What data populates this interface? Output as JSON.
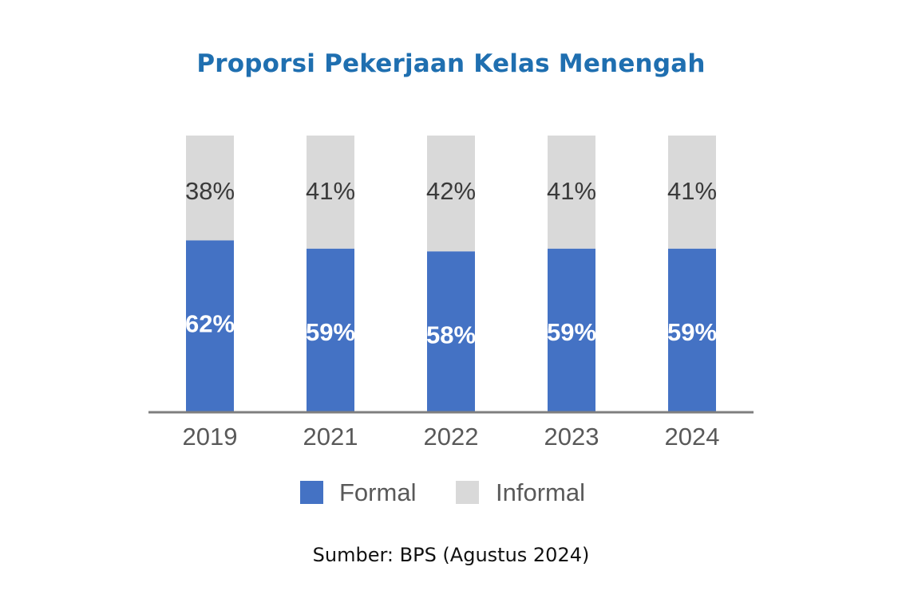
{
  "title": "Proporsi Pekerjaan Kelas Menengah",
  "source": "Sumber: BPS (Agustus 2024)",
  "colors": {
    "formal": "#4472c4",
    "informal": "#d9d9d9",
    "title": "#1f6fb0",
    "axis": "#7f7f7f",
    "formal_label": "#ffffff",
    "informal_label": "#3a3a3a",
    "tick_label": "#595959",
    "legend_text": "#595959"
  },
  "chart_data": {
    "type": "bar",
    "stacked": true,
    "percent": true,
    "title": "Proporsi Pekerjaan Kelas Menengah",
    "categories": [
      "2019",
      "2021",
      "2022",
      "2023",
      "2024"
    ],
    "series": [
      {
        "name": "Formal",
        "values": [
          62,
          59,
          58,
          59,
          59
        ],
        "labels": [
          "62%",
          "59%",
          "58%",
          "59%",
          "59%"
        ]
      },
      {
        "name": "Informal",
        "values": [
          38,
          41,
          42,
          41,
          41
        ],
        "labels": [
          "38%",
          "41%",
          "42%",
          "41%",
          "41%"
        ]
      }
    ],
    "ylim": [
      0,
      100
    ],
    "grid": false,
    "legend": "bottom"
  }
}
